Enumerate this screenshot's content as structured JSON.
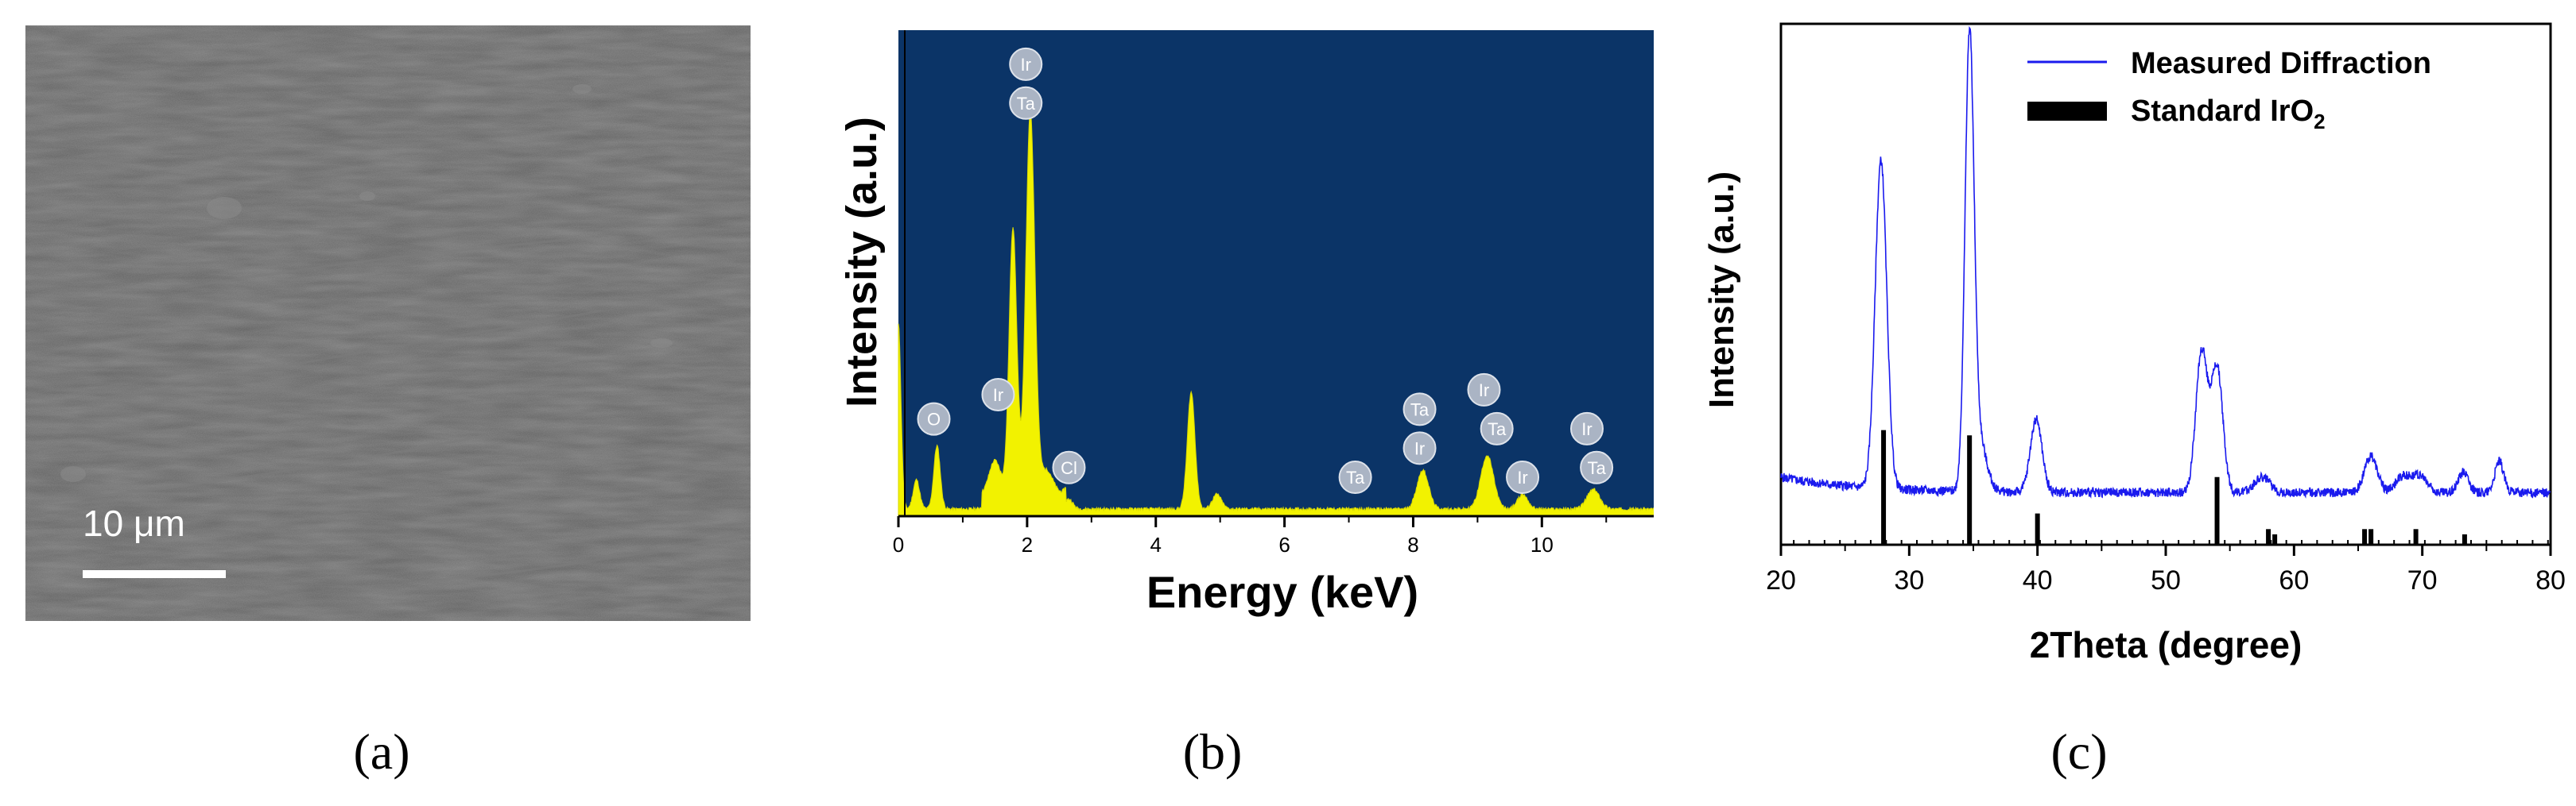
{
  "panel_a": {
    "scale_label": "10 μm",
    "caption": "(a)"
  },
  "panel_b": {
    "caption": "(b)"
  },
  "panel_c": {
    "caption": "(c)"
  },
  "chart_data": [
    {
      "type": "area",
      "panel": "b",
      "xlabel": "Energy (keV)",
      "ylabel": "Intensity (a.u.)",
      "xlim": [
        0,
        11.8
      ],
      "ylim": [
        0,
        100
      ],
      "x_ticks": [
        0,
        2,
        4,
        6,
        8,
        10
      ],
      "background_color": "#0b3467",
      "fill_color": "#f2f200",
      "peaks": [
        {
          "x": 0.0,
          "y": 38,
          "w": 0.04
        },
        {
          "x": 0.28,
          "y": 6,
          "w": 0.05
        },
        {
          "x": 0.6,
          "y": 13,
          "w": 0.05
        },
        {
          "x": 1.5,
          "y": 7,
          "w": 0.09
        },
        {
          "x": 1.78,
          "y": 55,
          "w": 0.06
        },
        {
          "x": 2.05,
          "y": 79,
          "w": 0.07
        },
        {
          "x": 2.3,
          "y": 5,
          "w": 0.1
        },
        {
          "x": 2.65,
          "y": 2,
          "w": 0.06
        },
        {
          "x": 4.55,
          "y": 24,
          "w": 0.06
        },
        {
          "x": 4.95,
          "y": 3,
          "w": 0.07
        },
        {
          "x": 8.15,
          "y": 8,
          "w": 0.09
        },
        {
          "x": 9.15,
          "y": 11,
          "w": 0.1
        },
        {
          "x": 9.7,
          "y": 3,
          "w": 0.08
        },
        {
          "x": 10.8,
          "y": 4,
          "w": 0.1
        }
      ],
      "annotations": [
        {
          "label": "O",
          "x": 0.55,
          "y": 20
        },
        {
          "label": "Ir",
          "x": 1.55,
          "y": 25
        },
        {
          "label": "Ir",
          "x": 1.98,
          "y": 93
        },
        {
          "label": "Ta",
          "x": 1.98,
          "y": 85
        },
        {
          "label": "Cl",
          "x": 2.65,
          "y": 10
        },
        {
          "label": "Ta",
          "x": 7.1,
          "y": 8
        },
        {
          "label": "Ta",
          "x": 8.1,
          "y": 22
        },
        {
          "label": "Ir",
          "x": 8.1,
          "y": 14
        },
        {
          "label": "Ir",
          "x": 9.1,
          "y": 26
        },
        {
          "label": "Ta",
          "x": 9.3,
          "y": 18
        },
        {
          "label": "Ir",
          "x": 9.7,
          "y": 8
        },
        {
          "label": "Ir",
          "x": 10.7,
          "y": 18
        },
        {
          "label": "Ta",
          "x": 10.85,
          "y": 10
        }
      ]
    },
    {
      "type": "line",
      "panel": "c",
      "xlabel": "2Theta (degree)",
      "ylabel": "Intensity (a.u.)",
      "xlim": [
        20,
        80
      ],
      "ylim": [
        0,
        100
      ],
      "x_ticks": [
        20,
        30,
        40,
        50,
        60,
        70,
        80
      ],
      "legend_position": "top-right",
      "series": [
        {
          "name": "Measured Diffraction",
          "color": "#1a1aee",
          "baseline": 10,
          "peaks": [
            {
              "x": 27.8,
              "y": 63,
              "w": 0.45
            },
            {
              "x": 34.7,
              "y": 84,
              "w": 0.35
            },
            {
              "x": 35.4,
              "y": 10,
              "w": 0.6
            },
            {
              "x": 39.9,
              "y": 14,
              "w": 0.45
            },
            {
              "x": 52.8,
              "y": 27,
              "w": 0.45
            },
            {
              "x": 54.0,
              "y": 24,
              "w": 0.45
            },
            {
              "x": 57.5,
              "y": 3,
              "w": 0.6
            },
            {
              "x": 66.0,
              "y": 7,
              "w": 0.5
            },
            {
              "x": 68.5,
              "y": 3,
              "w": 0.6
            },
            {
              "x": 69.8,
              "y": 3,
              "w": 0.6
            },
            {
              "x": 73.2,
              "y": 4,
              "w": 0.4
            },
            {
              "x": 76.0,
              "y": 6,
              "w": 0.35
            }
          ]
        },
        {
          "name": "Standard IrO",
          "name_subscript": "2",
          "color": "#000000",
          "sticks": [
            {
              "x": 28.0,
              "y": 22
            },
            {
              "x": 34.7,
              "y": 21
            },
            {
              "x": 40.0,
              "y": 6
            },
            {
              "x": 54.0,
              "y": 13
            },
            {
              "x": 58.0,
              "y": 3
            },
            {
              "x": 58.5,
              "y": 2
            },
            {
              "x": 65.5,
              "y": 3
            },
            {
              "x": 66.0,
              "y": 3
            },
            {
              "x": 69.5,
              "y": 3
            },
            {
              "x": 73.3,
              "y": 2
            }
          ]
        }
      ]
    }
  ]
}
